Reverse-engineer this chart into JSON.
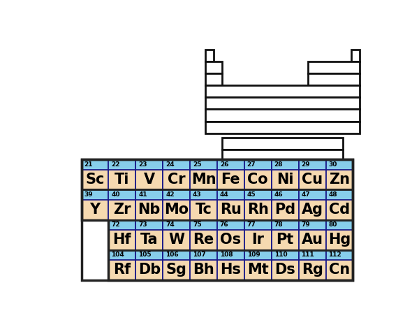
{
  "elements": [
    [
      {
        "num": 21,
        "sym": "Sc"
      },
      {
        "num": 22,
        "sym": "Ti"
      },
      {
        "num": 23,
        "sym": "V"
      },
      {
        "num": 24,
        "sym": "Cr"
      },
      {
        "num": 25,
        "sym": "Mn"
      },
      {
        "num": 26,
        "sym": "Fe"
      },
      {
        "num": 27,
        "sym": "Co"
      },
      {
        "num": 28,
        "sym": "Ni"
      },
      {
        "num": 29,
        "sym": "Cu"
      },
      {
        "num": 30,
        "sym": "Zn"
      }
    ],
    [
      {
        "num": 39,
        "sym": "Y"
      },
      {
        "num": 40,
        "sym": "Zr"
      },
      {
        "num": 41,
        "sym": "Nb"
      },
      {
        "num": 42,
        "sym": "Mo"
      },
      {
        "num": 43,
        "sym": "Tc"
      },
      {
        "num": 44,
        "sym": "Ru"
      },
      {
        "num": 45,
        "sym": "Rh"
      },
      {
        "num": 46,
        "sym": "Pd"
      },
      {
        "num": 47,
        "sym": "Ag"
      },
      {
        "num": 48,
        "sym": "Cd"
      }
    ],
    [
      null,
      {
        "num": 72,
        "sym": "Hf"
      },
      {
        "num": 73,
        "sym": "Ta"
      },
      {
        "num": 74,
        "sym": "W"
      },
      {
        "num": 75,
        "sym": "Re"
      },
      {
        "num": 76,
        "sym": "Os"
      },
      {
        "num": 77,
        "sym": "Ir"
      },
      {
        "num": 78,
        "sym": "Pt"
      },
      {
        "num": 79,
        "sym": "Au"
      },
      {
        "num": 80,
        "sym": "Hg"
      }
    ],
    [
      null,
      {
        "num": 104,
        "sym": "Rf"
      },
      {
        "num": 105,
        "sym": "Db"
      },
      {
        "num": 106,
        "sym": "Sg"
      },
      {
        "num": 107,
        "sym": "Bh"
      },
      {
        "num": 108,
        "sym": "Hs"
      },
      {
        "num": 109,
        "sym": "Mt"
      },
      {
        "num": 110,
        "sym": "Ds"
      },
      {
        "num": 111,
        "sym": "Rg"
      },
      {
        "num": 112,
        "sym": "Cn"
      }
    ]
  ],
  "cell_bg": "#f5d9b0",
  "cell_top_bg": "#87ceeb",
  "cell_border": "#1a1a8a",
  "background": "#ffffff",
  "pt_line_color": "#111111",
  "pt_highlight_color": "#f5dfc0",
  "num_fontsize": 6.5,
  "sym_fontsize": 15,
  "outer_border_color": "#222222"
}
